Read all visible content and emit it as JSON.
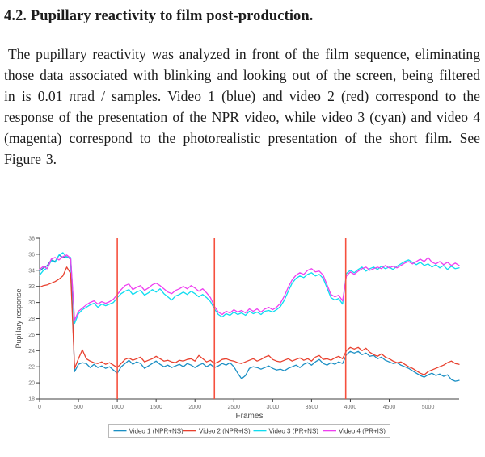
{
  "paper": {
    "heading": "4.2. Pupillary reactivity to film post-production.",
    "paragraph": "The pupillary reactivity was analyzed in front of the film sequence, eliminating those data associated with blinking and looking out of the screen, being filtered in is 0.01 πrad / samples. Video 1 (blue) and video 2 (red) correspond to the response of the presentation of the NPR video, while video 3 (cyan) and video 4 (magenta) correspond to the photorealistic presentation of the short film. See Figure 3."
  },
  "chart_data": {
    "type": "line",
    "title": "",
    "xlabel": "Frames",
    "ylabel": "Pupillary response",
    "xlim": [
      0,
      5400
    ],
    "ylim": [
      18,
      38
    ],
    "x_ticks": [
      0,
      500,
      1000,
      1500,
      2000,
      2500,
      3000,
      3500,
      4000,
      4500,
      5000
    ],
    "y_ticks": [
      18,
      20,
      22,
      24,
      26,
      28,
      30,
      32,
      34,
      36,
      38
    ],
    "grid": false,
    "legend_position": "bottom",
    "x_start": 0,
    "x_step": 50,
    "event_lines_x": [
      1000,
      2250,
      3940
    ],
    "event_line_color": "#f6503e",
    "axis_color": "#404040",
    "tick_label_color": "#707070",
    "series": [
      {
        "name": "Video 1 (NPR+NS)",
        "color": "#1b8fc4",
        "values": [
          33.9,
          34.3,
          34.6,
          35.3,
          35.1,
          35.9,
          35.6,
          35.7,
          35.4,
          21.4,
          22.3,
          22.5,
          22.4,
          21.9,
          22.3,
          21.9,
          22.1,
          21.8,
          22.0,
          21.6,
          21.2,
          22.0,
          22.4,
          22.8,
          22.3,
          22.6,
          22.4,
          21.8,
          22.1,
          22.4,
          22.7,
          22.3,
          22.0,
          22.2,
          21.9,
          22.1,
          22.3,
          22.0,
          22.4,
          22.2,
          21.9,
          22.2,
          22.4,
          22.0,
          22.3,
          21.9,
          22.1,
          22.4,
          22.2,
          22.5,
          22.0,
          21.2,
          20.5,
          20.9,
          21.8,
          22.0,
          21.9,
          21.7,
          21.9,
          22.1,
          21.8,
          21.6,
          21.7,
          21.5,
          21.8,
          22.0,
          22.2,
          21.9,
          22.3,
          22.5,
          22.2,
          22.6,
          22.9,
          22.4,
          22.2,
          22.5,
          22.3,
          22.6,
          22.4,
          23.5,
          23.9,
          23.7,
          23.9,
          23.5,
          23.7,
          23.3,
          23.4,
          23.0,
          23.2,
          22.8,
          22.6,
          22.4,
          22.5,
          22.2,
          22.0,
          21.8,
          21.5,
          21.2,
          20.9,
          20.7,
          21.0,
          21.2,
          20.9,
          21.1,
          20.8,
          21.0,
          20.4,
          20.2,
          20.3
        ]
      },
      {
        "name": "Video 2 (NPR+IS)",
        "color": "#e8402e",
        "values": [
          31.9,
          32.1,
          32.2,
          32.4,
          32.6,
          32.9,
          33.3,
          34.4,
          33.6,
          21.8,
          23.0,
          24.1,
          23.0,
          22.7,
          22.5,
          22.4,
          22.6,
          22.3,
          22.5,
          22.2,
          21.9,
          22.4,
          22.9,
          23.1,
          22.8,
          23.0,
          23.2,
          22.6,
          22.8,
          23.0,
          23.3,
          23.0,
          22.7,
          22.8,
          22.6,
          22.5,
          22.8,
          22.7,
          22.9,
          23.0,
          22.7,
          23.4,
          23.0,
          22.6,
          22.8,
          22.4,
          22.6,
          22.9,
          23.0,
          22.8,
          22.7,
          22.5,
          22.4,
          22.6,
          22.8,
          23.0,
          22.7,
          22.9,
          23.2,
          23.4,
          22.9,
          22.7,
          22.6,
          22.8,
          23.0,
          22.7,
          22.9,
          23.1,
          22.8,
          23.0,
          22.7,
          23.2,
          23.4,
          22.9,
          23.0,
          22.8,
          23.1,
          23.3,
          23.0,
          24.0,
          24.4,
          24.2,
          24.4,
          24.0,
          24.3,
          23.8,
          23.5,
          23.3,
          23.6,
          23.2,
          23.0,
          22.7,
          22.5,
          22.6,
          22.3,
          22.0,
          21.8,
          21.5,
          21.2,
          21.0,
          21.4,
          21.6,
          21.8,
          22.0,
          22.2,
          22.5,
          22.7,
          22.4,
          22.3
        ]
      },
      {
        "name": "Video 3 (PR+NS)",
        "color": "#0fdcf0",
        "values": [
          33.4,
          34.0,
          34.3,
          35.2,
          35.0,
          35.9,
          36.2,
          35.6,
          35.6,
          27.4,
          28.6,
          29.1,
          29.4,
          29.7,
          29.9,
          29.4,
          29.8,
          29.6,
          29.8,
          30.0,
          30.6,
          31.1,
          31.4,
          31.6,
          31.0,
          31.3,
          31.5,
          30.9,
          31.2,
          31.6,
          31.3,
          31.7,
          31.1,
          30.7,
          30.3,
          30.8,
          31.0,
          31.3,
          31.0,
          31.4,
          31.1,
          30.7,
          31.0,
          30.6,
          30.1,
          29.2,
          28.5,
          28.2,
          28.6,
          28.4,
          28.8,
          28.5,
          28.7,
          28.4,
          28.9,
          28.6,
          28.8,
          28.5,
          28.9,
          29.0,
          28.8,
          29.1,
          29.5,
          30.3,
          31.4,
          32.4,
          33.0,
          33.3,
          33.1,
          33.5,
          33.7,
          33.3,
          33.5,
          33.0,
          31.8,
          30.6,
          30.3,
          30.5,
          29.8,
          33.6,
          34.0,
          33.7,
          34.1,
          34.4,
          33.9,
          34.2,
          34.4,
          34.1,
          34.5,
          34.2,
          34.4,
          34.1,
          34.5,
          34.8,
          35.1,
          35.3,
          35.0,
          34.7,
          35.0,
          34.6,
          34.8,
          34.4,
          34.7,
          34.3,
          34.6,
          34.1,
          34.5,
          34.2,
          34.3
        ]
      },
      {
        "name": "Video 4 (PR+IS)",
        "color": "#ee3ff0",
        "values": [
          34.1,
          34.5,
          34.2,
          35.4,
          35.6,
          35.3,
          35.7,
          35.9,
          35.5,
          27.8,
          28.9,
          29.3,
          29.7,
          30.0,
          30.2,
          29.8,
          30.1,
          29.9,
          30.1,
          30.4,
          31.0,
          31.6,
          32.1,
          32.3,
          31.6,
          31.9,
          32.1,
          31.5,
          31.8,
          32.2,
          32.4,
          32.1,
          31.7,
          31.3,
          31.1,
          31.5,
          31.7,
          32.0,
          31.7,
          32.1,
          31.8,
          31.4,
          31.7,
          31.2,
          30.6,
          29.5,
          28.8,
          28.5,
          28.9,
          28.7,
          29.1,
          28.8,
          29.0,
          28.7,
          29.2,
          28.9,
          29.2,
          28.8,
          29.2,
          29.4,
          29.1,
          29.4,
          29.9,
          30.8,
          31.9,
          32.8,
          33.4,
          33.7,
          33.5,
          34.0,
          34.2,
          33.8,
          33.9,
          33.4,
          32.2,
          31.0,
          30.7,
          30.9,
          30.2,
          33.3,
          33.8,
          33.5,
          33.9,
          34.2,
          34.4,
          34.0,
          34.2,
          34.4,
          34.2,
          34.6,
          34.3,
          34.5,
          34.3,
          34.6,
          34.9,
          35.1,
          34.8,
          35.1,
          35.4,
          35.1,
          35.6,
          35.0,
          34.8,
          35.1,
          34.7,
          35.0,
          34.6,
          34.9,
          34.6
        ]
      }
    ]
  }
}
